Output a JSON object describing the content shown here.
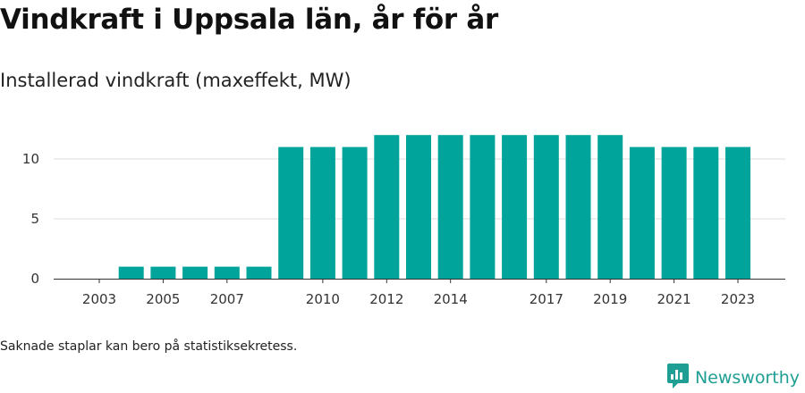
{
  "title": "Vindkraft i Uppsala län, år för år",
  "subtitle": "Installerad vindkraft (maxeffekt, MW)",
  "footnote": "Saknade staplar kan bero på statistiksekretess.",
  "brand": {
    "name": "Newsworthy",
    "icon": "newsworthy-logo-icon",
    "color": "#1f9e93"
  },
  "colors": {
    "bar": "#00a49a",
    "grid": "#dddddd",
    "axis": "#333333"
  },
  "chart_data": {
    "type": "bar",
    "title": "Vindkraft i Uppsala län, år för år",
    "subtitle": "Installerad vindkraft (maxeffekt, MW)",
    "xlabel": "",
    "ylabel": "",
    "categories": [
      2003,
      2004,
      2005,
      2006,
      2007,
      2008,
      2009,
      2010,
      2011,
      2012,
      2013,
      2014,
      2015,
      2016,
      2017,
      2018,
      2019,
      2020,
      2021,
      2022,
      2023
    ],
    "values": [
      0,
      1,
      1,
      1,
      1,
      1,
      11,
      11,
      11,
      12,
      12,
      12,
      12,
      12,
      12,
      12,
      12,
      11,
      11,
      11,
      11
    ],
    "x_tick_labels": [
      "2003",
      "2005",
      "2007",
      "2010",
      "2012",
      "2014",
      "2017",
      "2019",
      "2021",
      "2023"
    ],
    "y_ticks": [
      0,
      5,
      10
    ],
    "ylim": [
      0,
      12
    ],
    "grid": true,
    "legend": false
  }
}
